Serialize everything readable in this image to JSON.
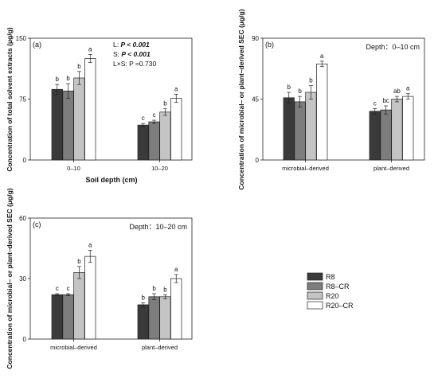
{
  "chart_data": [
    {
      "type": "bar",
      "panel_label": "(a)",
      "categories": [
        "0–10",
        "10–20"
      ],
      "series": [
        {
          "name": "R8",
          "values": [
            87,
            43
          ],
          "errors": [
            6,
            2
          ],
          "letters": [
            "b",
            "c"
          ]
        },
        {
          "name": "R8–CR",
          "values": [
            85,
            47
          ],
          "errors": [
            9,
            2
          ],
          "letters": [
            "b",
            "c"
          ]
        },
        {
          "name": "R20",
          "values": [
            101,
            59
          ],
          "errors": [
            8,
            4
          ],
          "letters": [
            "b",
            "b"
          ]
        },
        {
          "name": "R20–CR",
          "values": [
            125,
            76
          ],
          "errors": [
            5,
            5
          ],
          "letters": [
            "a",
            "a"
          ]
        }
      ],
      "ylabel": "Concentration of total solvent extracts (μg/g)",
      "xlabel": "Soil depth (cm)",
      "ylim": [
        0,
        150
      ],
      "yticks": [
        "0",
        "75",
        "150"
      ],
      "annotations": [
        {
          "prefix": "L: ",
          "p": "P < 0.001"
        },
        {
          "prefix": "S: ",
          "p": "P < 0.001"
        },
        {
          "prefix": "L×S: ",
          "p": "P =0.730"
        }
      ]
    },
    {
      "type": "bar",
      "panel_label": "(b)",
      "title": "Depth：0–10 cm",
      "categories": [
        "microbial–derived",
        "plant–derived"
      ],
      "series": [
        {
          "name": "R8",
          "values": [
            46,
            36
          ],
          "errors": [
            4,
            2
          ],
          "letters": [
            "b",
            "c"
          ]
        },
        {
          "name": "R8–CR",
          "values": [
            43,
            37
          ],
          "errors": [
            4,
            3
          ],
          "letters": [
            "b",
            "bc"
          ]
        },
        {
          "name": "R20",
          "values": [
            50,
            45
          ],
          "errors": [
            5,
            2
          ],
          "letters": [
            "b",
            "ab"
          ]
        },
        {
          "name": "R20–CR",
          "values": [
            71,
            47
          ],
          "errors": [
            2,
            2
          ],
          "letters": [
            "a",
            "a"
          ]
        }
      ],
      "ylabel": "Concentration of microbial– or plant–derived SEC (μg/g)",
      "ylim": [
        0,
        90
      ],
      "yticks": [
        "0",
        "45",
        "90"
      ]
    },
    {
      "type": "bar",
      "panel_label": "(c)",
      "title": "Depth：10–20 cm",
      "categories": [
        "microbial–derived",
        "plant–derived"
      ],
      "series": [
        {
          "name": "R8",
          "values": [
            22,
            17
          ],
          "errors": [
            0.5,
            1
          ],
          "letters": [
            "c",
            "b"
          ]
        },
        {
          "name": "R8–CR",
          "values": [
            22,
            21
          ],
          "errors": [
            0.5,
            1.5
          ],
          "letters": [
            "c",
            "b"
          ]
        },
        {
          "name": "R20",
          "values": [
            33,
            21
          ],
          "errors": [
            3,
            1
          ],
          "letters": [
            "b",
            "b"
          ]
        },
        {
          "name": "R20–CR",
          "values": [
            41,
            30
          ],
          "errors": [
            3,
            2
          ],
          "letters": [
            "a",
            "a"
          ]
        }
      ],
      "ylabel": "Concentration of microbial– or plant–derived SEC (μg/g)",
      "ylim": [
        0,
        60
      ],
      "yticks": [
        "0",
        "30",
        "60"
      ]
    }
  ],
  "legend": {
    "items": [
      {
        "label": "R8",
        "color": "#3a3a3a"
      },
      {
        "label": "R8–CR",
        "color": "#7d7d7d"
      },
      {
        "label": "R20",
        "color": "#c4c4c4"
      },
      {
        "label": "R20–CR",
        "color": "#ffffff"
      }
    ]
  }
}
